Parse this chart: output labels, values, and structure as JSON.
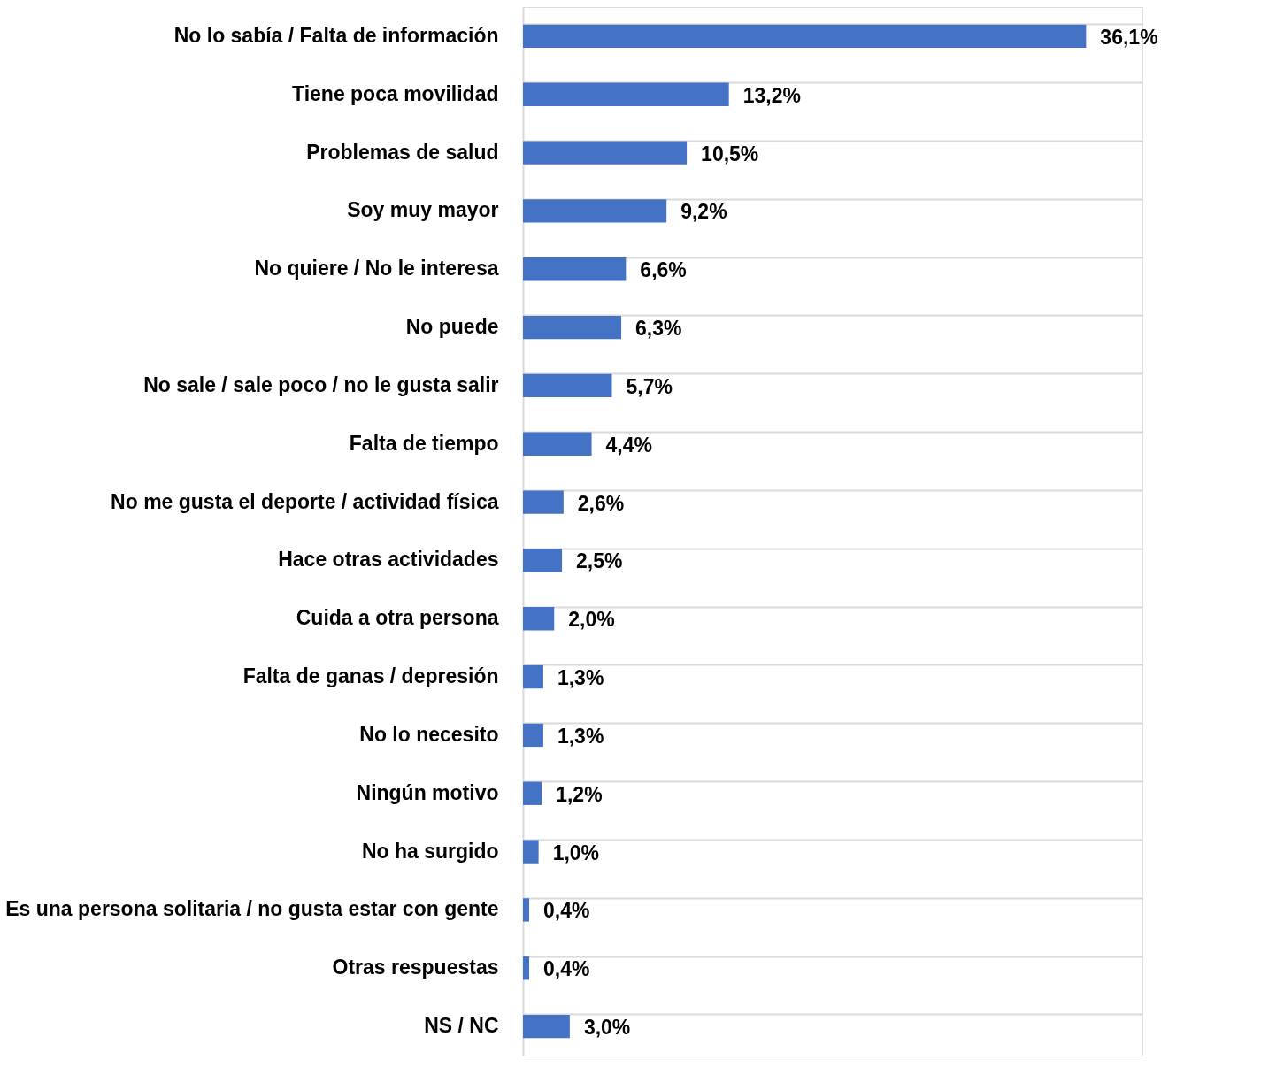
{
  "chart_data": {
    "type": "bar",
    "orientation": "horizontal",
    "grid": "y",
    "color": "#4472c4",
    "categories": [
      "No lo sabía / Falta de información",
      "Tiene poca movilidad",
      "Problemas de salud",
      "Soy muy mayor",
      "No quiere / No le interesa",
      "No puede",
      "No sale / sale poco / no le gusta salir",
      "Falta de tiempo",
      "No me gusta el deporte / actividad física",
      "Hace otras actividades",
      "Cuida a otra persona",
      "Falta de ganas / depresión",
      "No lo necesito",
      "Ningún motivo",
      "No ha surgido",
      "Es una persona solitaria / no gusta estar con gente",
      "Otras respuestas",
      "NS / NC"
    ],
    "values": [
      36.1,
      13.2,
      10.5,
      9.2,
      6.6,
      6.3,
      5.7,
      4.4,
      2.6,
      2.5,
      2.0,
      1.3,
      1.3,
      1.2,
      1.0,
      0.4,
      0.4,
      3.0
    ],
    "value_labels": [
      "36,1%",
      "13,2%",
      "10,5%",
      "9,2%",
      "6,6%",
      "6,3%",
      "5,7%",
      "4,4%",
      "2,6%",
      "2,5%",
      "2,0%",
      "1,3%",
      "1,3%",
      "1,2%",
      "1,0%",
      "0,4%",
      "0,4%",
      "3,0%"
    ]
  }
}
